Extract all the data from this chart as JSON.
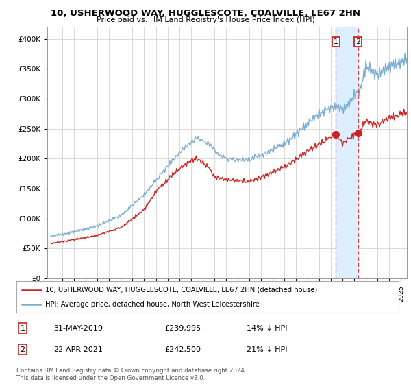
{
  "title": "10, USHERWOOD WAY, HUGGLESCOTE, COALVILLE, LE67 2HN",
  "subtitle": "Price paid vs. HM Land Registry's House Price Index (HPI)",
  "ylabel_ticks": [
    "£0",
    "£50K",
    "£100K",
    "£150K",
    "£200K",
    "£250K",
    "£300K",
    "£350K",
    "£400K"
  ],
  "ytick_vals": [
    0,
    50000,
    100000,
    150000,
    200000,
    250000,
    300000,
    350000,
    400000
  ],
  "ylim": [
    0,
    420000
  ],
  "xlim_start": 1994.7,
  "xlim_end": 2025.5,
  "hpi_color": "#7aadd4",
  "price_color": "#cc2222",
  "shade_color": "#ddeeff",
  "marker1_date": 2019.42,
  "marker2_date": 2021.31,
  "marker1_price": 239995,
  "marker2_price": 242500,
  "vline_color": "#dd4444",
  "legend_line1": "10, USHERWOOD WAY, HUGGLESCOTE, COALVILLE, LE67 2HN (detached house)",
  "legend_line2": "HPI: Average price, detached house, North West Leicestershire",
  "annotation1_label": "1",
  "annotation1_date": "31-MAY-2019",
  "annotation1_price": "£239,995",
  "annotation1_hpi": "14% ↓ HPI",
  "annotation2_label": "2",
  "annotation2_date": "22-APR-2021",
  "annotation2_price": "£242,500",
  "annotation2_hpi": "21% ↓ HPI",
  "footer": "Contains HM Land Registry data © Crown copyright and database right 2024.\nThis data is licensed under the Open Government Licence v3.0.",
  "background_color": "#ffffff",
  "grid_color": "#cccccc"
}
